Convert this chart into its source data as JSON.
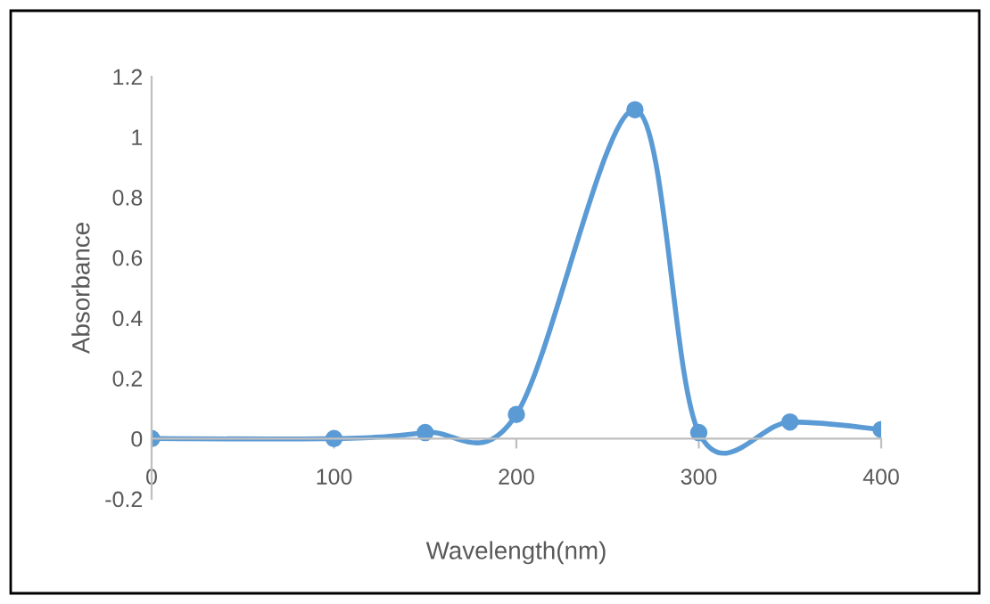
{
  "chart_data": {
    "type": "line",
    "xlabel": "Wavelength(nm)",
    "ylabel": "Absorbance",
    "x": [
      0,
      100,
      150,
      200,
      265,
      300,
      350,
      400
    ],
    "series": [
      {
        "color": "#5b9bd5",
        "values": [
          0,
          0,
          0.02,
          0.08,
          1.09,
          0.02,
          0.055,
          0.03
        ]
      }
    ],
    "xlim": [
      0,
      400
    ],
    "xticks": [
      0,
      100,
      200,
      300,
      400
    ],
    "ylim": [
      -0.2,
      1.2
    ],
    "yticks": [
      -0.2,
      0,
      0.2,
      0.4,
      0.6,
      0.8,
      1,
      1.2
    ],
    "marker": "circle",
    "line_style": "solid",
    "grid": false,
    "legend": false
  }
}
